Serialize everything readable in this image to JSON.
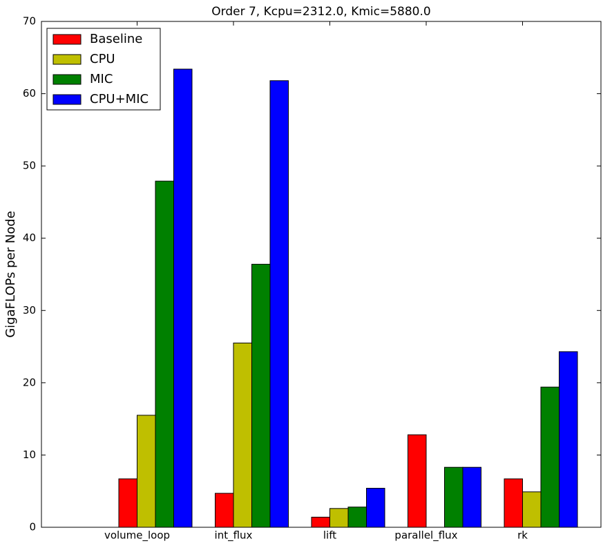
{
  "chart_data": {
    "type": "bar",
    "title": "Order 7, Kcpu=2312.0, Kmic=5880.0",
    "y_label": "GigaFLOPs per Node",
    "categories": [
      "volume_loop",
      "int_flux",
      "lift",
      "parallel_flux",
      "rk"
    ],
    "series": [
      {
        "name": "Baseline",
        "color": "#ff0000",
        "values": [
          6.7,
          4.7,
          1.4,
          12.8,
          6.7
        ]
      },
      {
        "name": "CPU",
        "color": "#bfbf00",
        "values": [
          15.5,
          25.5,
          2.6,
          0,
          4.9
        ]
      },
      {
        "name": "MIC",
        "color": "#008000",
        "values": [
          47.9,
          36.4,
          2.8,
          8.3,
          19.4
        ]
      },
      {
        "name": "CPU+MIC",
        "color": "#0000ff",
        "values": [
          63.4,
          61.8,
          5.4,
          8.3,
          24.3
        ]
      }
    ],
    "ylim": [
      0,
      70
    ],
    "yticks": [
      0,
      10,
      20,
      30,
      40,
      50,
      60,
      70
    ],
    "legend": "upper-left"
  }
}
